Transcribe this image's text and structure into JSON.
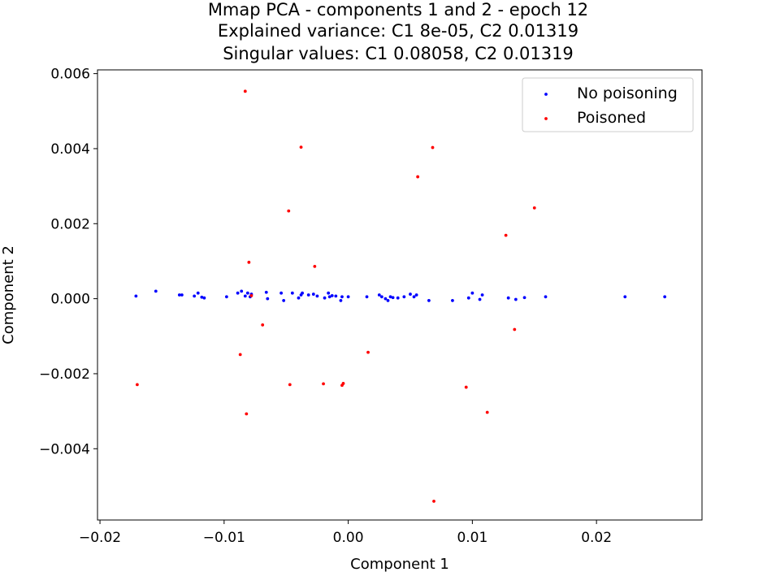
{
  "chart_data": {
    "type": "scatter",
    "title_lines": [
      "Mmap PCA - components 1 and 2 - epoch 12",
      "Explained variance: C1 8e-05, C2 0.01319",
      "Singular values: C1 0.08058, C2 0.01319"
    ],
    "xlabel": "Component 1",
    "ylabel": "Component 2",
    "xlim": [
      -0.0202,
      0.0285
    ],
    "ylim": [
      -0.0059,
      0.0061
    ],
    "xticks": [
      -0.02,
      -0.01,
      0.0,
      0.01,
      0.02
    ],
    "xtick_labels": [
      "−0.02",
      "−0.01",
      "0.00",
      "0.01",
      "0.02"
    ],
    "yticks": [
      -0.004,
      -0.002,
      0.0,
      0.002,
      0.004,
      0.006
    ],
    "ytick_labels": [
      "−0.004",
      "−0.002",
      "0.000",
      "0.002",
      "0.004",
      "0.006"
    ],
    "grid": false,
    "legend_position": "top-right",
    "series": [
      {
        "name": "No poisoning",
        "color": "#0000ff",
        "points": [
          [
            -0.0171,
            7e-05
          ],
          [
            -0.0155,
            0.0002
          ],
          [
            -0.0136,
            0.0001
          ],
          [
            -0.0134,
            0.0001
          ],
          [
            -0.0124,
            7e-05
          ],
          [
            -0.0121,
            0.00015
          ],
          [
            -0.0118,
            4e-05
          ],
          [
            -0.0116,
            2e-05
          ],
          [
            -0.0098,
            5e-05
          ],
          [
            -0.0089,
            0.00015
          ],
          [
            -0.0086,
            0.0002
          ],
          [
            -0.0083,
            7e-05
          ],
          [
            -0.0081,
            0.00015
          ],
          [
            -0.0079,
            5e-05
          ],
          [
            -0.0078,
            0.00012
          ],
          [
            -0.0066,
            0.00017
          ],
          [
            -0.0065,
            0.0
          ],
          [
            -0.0054,
            0.00015
          ],
          [
            -0.0052,
            -5e-05
          ],
          [
            -0.0045,
            0.00015
          ],
          [
            -0.004,
            2e-05
          ],
          [
            -0.0038,
            0.0001
          ],
          [
            -0.0037,
            0.00015
          ],
          [
            -0.0032,
            0.0001
          ],
          [
            -0.0028,
            0.00012
          ],
          [
            -0.0025,
            7e-05
          ],
          [
            -0.0019,
            2e-05
          ],
          [
            -0.0016,
            0.00015
          ],
          [
            -0.0015,
            5e-05
          ],
          [
            -0.0013,
            8e-05
          ],
          [
            -0.001,
            7e-05
          ],
          [
            -0.0006,
            -5e-05
          ],
          [
            -0.0005,
            5e-05
          ],
          [
            0.0,
            5e-05
          ],
          [
            0.0015,
            5e-05
          ],
          [
            0.0025,
            0.0001
          ],
          [
            0.0027,
            5e-05
          ],
          [
            0.003,
            0.0
          ],
          [
            0.0032,
            -5e-05
          ],
          [
            0.0034,
            5e-05
          ],
          [
            0.0036,
            3e-05
          ],
          [
            0.004,
            2e-05
          ],
          [
            0.0045,
            5e-05
          ],
          [
            0.005,
            0.00012
          ],
          [
            0.0053,
            5e-05
          ],
          [
            0.0055,
            0.0001
          ],
          [
            0.0065,
            -5e-05
          ],
          [
            0.0084,
            -5e-05
          ],
          [
            0.0097,
            2e-05
          ],
          [
            0.01,
            0.00015
          ],
          [
            0.0106,
            -2e-05
          ],
          [
            0.0108,
            0.0001
          ],
          [
            0.0129,
            2e-05
          ],
          [
            0.0135,
            -2e-05
          ],
          [
            0.0142,
            3e-05
          ],
          [
            0.0159,
            5e-05
          ],
          [
            0.0223,
            5e-05
          ],
          [
            0.0255,
            5e-05
          ]
        ]
      },
      {
        "name": "Poisoned",
        "color": "#ff0000",
        "points": [
          [
            -0.0083,
            0.00553
          ],
          [
            -0.0038,
            0.00404
          ],
          [
            0.0068,
            0.00403
          ],
          [
            0.0056,
            0.00325
          ],
          [
            -0.0048,
            0.00234
          ],
          [
            0.015,
            0.00242
          ],
          [
            0.0127,
            0.00169
          ],
          [
            -0.008,
            0.00097
          ],
          [
            -0.0027,
            0.00086
          ],
          [
            -0.0078,
            8e-05
          ],
          [
            -0.0069,
            -0.0007
          ],
          [
            0.0134,
            -0.00082
          ],
          [
            -0.0087,
            -0.00149
          ],
          [
            0.0016,
            -0.00143
          ],
          [
            -0.017,
            -0.00229
          ],
          [
            -0.0047,
            -0.00229
          ],
          [
            -0.002,
            -0.00227
          ],
          [
            -0.0004,
            -0.00226
          ],
          [
            -0.0005,
            -0.00231
          ],
          [
            0.0095,
            -0.00236
          ],
          [
            -0.0082,
            -0.00307
          ],
          [
            0.0112,
            -0.00303
          ],
          [
            0.0069,
            -0.0054
          ]
        ]
      }
    ]
  }
}
